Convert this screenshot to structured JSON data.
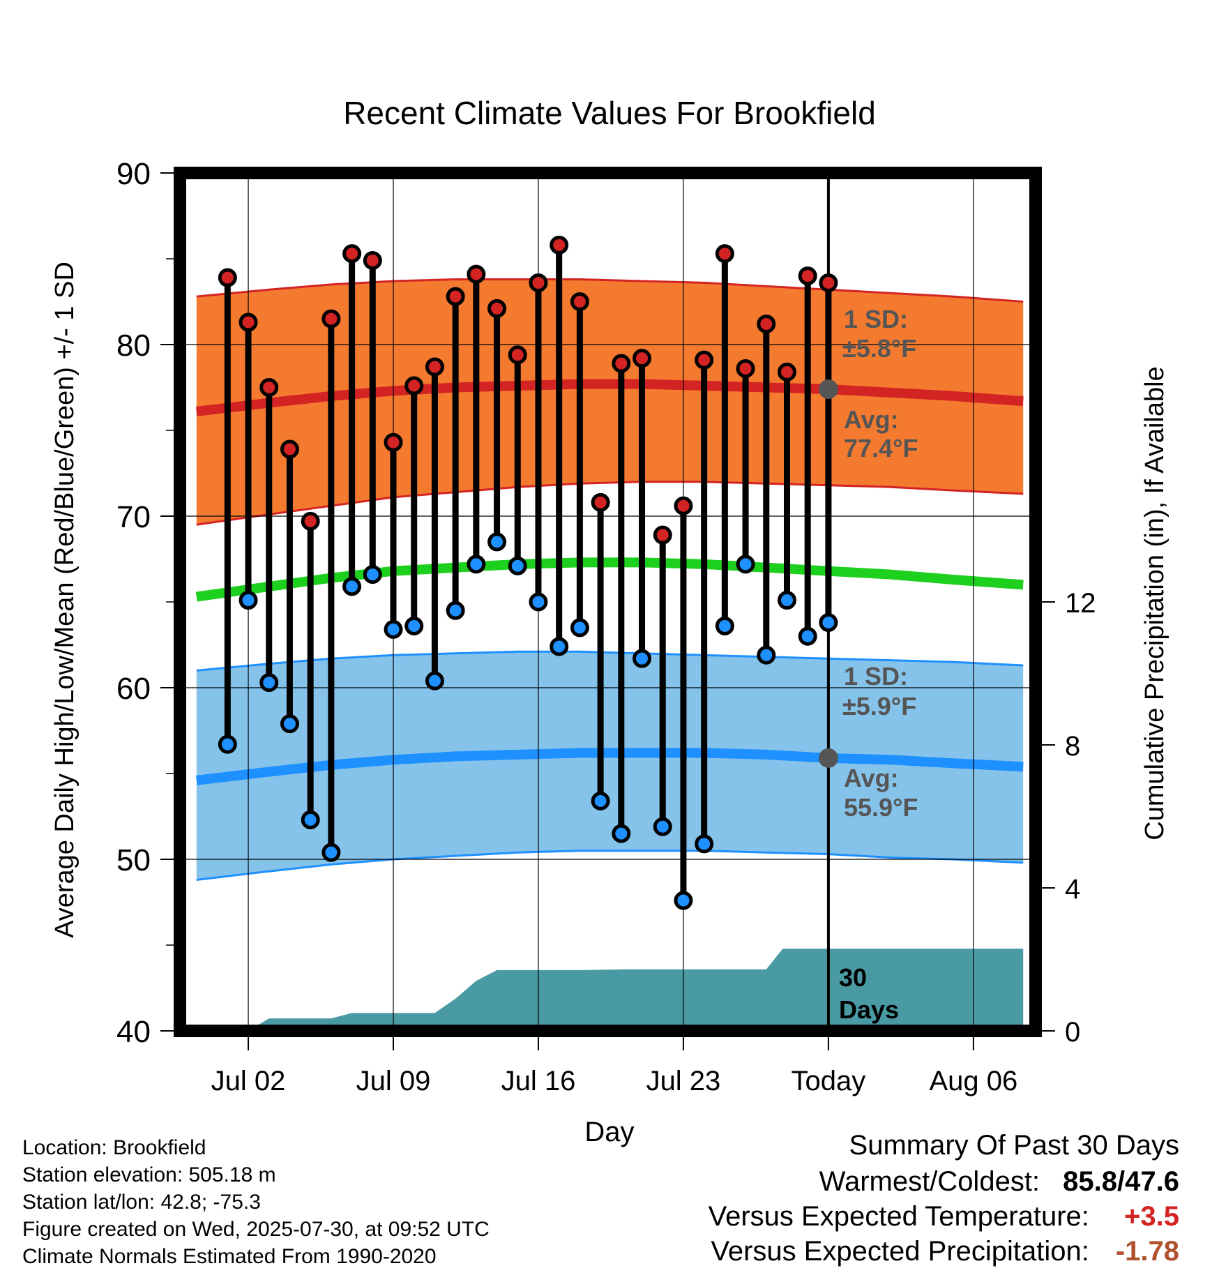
{
  "chart_data": {
    "type": "line",
    "title": "Recent Climate Values For Brookfield",
    "xlabel": "Day",
    "ylabel": "Average Daily High/Low/Mean (Red/Blue/Green) +/- 1 SD",
    "y2label": "Cumulative Precipitation (in), If Available",
    "ylim": [
      40,
      90
    ],
    "y2lim": [
      0,
      24
    ],
    "y_ticks": [
      "90",
      "80",
      "70",
      "60",
      "50",
      "40"
    ],
    "y2_ticks": [
      "12",
      "8",
      "4",
      "0"
    ],
    "x_tick_labels": [
      "Jul 02",
      "Jul 09",
      "Jul 16",
      "Jul 23",
      "Today",
      "Aug 06"
    ],
    "x_range_days": [
      -1.3,
      40.0
    ],
    "x_tick_days": [
      2,
      9,
      16,
      23,
      30,
      37
    ],
    "today_day": 30,
    "grid": true,
    "daily_obs": {
      "days": [
        1,
        2,
        3,
        4,
        5,
        6,
        7,
        8,
        9,
        10,
        11,
        12,
        13,
        14,
        15,
        16,
        17,
        18,
        19,
        20,
        21,
        22,
        23,
        24,
        25,
        26,
        27,
        28,
        29,
        30
      ],
      "high": [
        83.9,
        81.3,
        77.5,
        73.9,
        69.7,
        81.5,
        85.3,
        84.9,
        74.3,
        77.6,
        78.7,
        82.8,
        84.1,
        82.1,
        79.4,
        83.6,
        85.8,
        82.5,
        70.8,
        78.9,
        79.2,
        68.9,
        70.6,
        79.1,
        85.3,
        78.6,
        81.2,
        78.4,
        84.0,
        83.6
      ],
      "low": [
        56.7,
        65.1,
        60.3,
        57.9,
        52.3,
        50.4,
        65.9,
        66.6,
        63.4,
        63.6,
        60.4,
        64.5,
        67.2,
        68.5,
        67.1,
        65.0,
        62.4,
        63.5,
        53.4,
        51.5,
        61.7,
        51.9,
        47.6,
        50.9,
        63.6,
        67.2,
        61.9,
        65.1,
        63.0,
        63.8
      ]
    },
    "normals": {
      "days": [
        -0.5,
        3,
        6,
        9,
        12,
        15,
        18,
        21,
        24,
        27,
        30,
        33,
        36,
        39.4
      ],
      "high_mean": [
        76.1,
        76.6,
        77.0,
        77.3,
        77.5,
        77.6,
        77.7,
        77.7,
        77.6,
        77.5,
        77.4,
        77.2,
        77.0,
        76.7
      ],
      "high_upper": [
        82.8,
        83.2,
        83.5,
        83.7,
        83.8,
        83.8,
        83.8,
        83.7,
        83.6,
        83.4,
        83.2,
        83.0,
        82.8,
        82.5
      ],
      "high_lower": [
        69.5,
        70.1,
        70.6,
        71.1,
        71.4,
        71.7,
        71.9,
        72.0,
        72.0,
        71.9,
        71.8,
        71.7,
        71.5,
        71.3
      ],
      "low_mean": [
        54.6,
        55.1,
        55.5,
        55.8,
        56.0,
        56.1,
        56.2,
        56.2,
        56.2,
        56.1,
        55.9,
        55.8,
        55.6,
        55.4
      ],
      "low_upper": [
        61.0,
        61.4,
        61.7,
        61.9,
        62.0,
        62.1,
        62.1,
        62.0,
        61.9,
        61.8,
        61.7,
        61.6,
        61.5,
        61.3
      ],
      "low_lower": [
        48.8,
        49.3,
        49.7,
        50.0,
        50.2,
        50.4,
        50.5,
        50.5,
        50.5,
        50.4,
        50.3,
        50.1,
        50.0,
        49.8
      ],
      "mean": [
        65.3,
        65.9,
        66.4,
        66.8,
        67.0,
        67.2,
        67.3,
        67.3,
        67.2,
        67.0,
        66.8,
        66.6,
        66.3,
        66.0
      ]
    },
    "precip_cumulative": {
      "days": [
        -0.5,
        0.2,
        2,
        3,
        6,
        7,
        11,
        12,
        13,
        14,
        16,
        18,
        20,
        22,
        24,
        27,
        27.8,
        29,
        30,
        33,
        36,
        39.4
      ],
      "values": [
        0.0,
        0.0,
        0.0,
        0.35,
        0.35,
        0.5,
        0.5,
        0.9,
        1.4,
        1.7,
        1.7,
        1.7,
        1.72,
        1.72,
        1.72,
        1.72,
        2.3,
        2.3,
        2.3,
        2.3,
        2.3,
        2.3
      ]
    },
    "annotations": {
      "high_sd_label": "1 SD:",
      "high_sd_value": "±5.8°F",
      "high_avg_label": "Avg:",
      "high_avg_value": "77.4°F",
      "high_avg_marker": 77.4,
      "low_sd_label": "1 SD:",
      "low_sd_value": "±5.9°F",
      "low_avg_label": "Avg:",
      "low_avg_value": "55.9°F",
      "low_avg_marker": 55.9,
      "precip_days_label_1": "30",
      "precip_days_label_2": "Days"
    },
    "colors": {
      "high_band": "#f47a30",
      "high_line": "#d42323",
      "low_band": "#86c3ea",
      "low_line": "#1e90ff",
      "mean_line": "#1ed01e",
      "precip_fill": "#4a9aa4",
      "high_dot": "#d42323",
      "low_dot": "#1e90ff",
      "annotation_text": "#555555",
      "warm_value": "#d42323",
      "dry_value": "#b0522d"
    }
  },
  "footer": {
    "location": "Location: Brookfield",
    "elevation": "Station elevation: 505.18 m",
    "latlon": "Station lat/lon: 42.8; -75.3",
    "created": "Figure created on Wed, 2025-07-30, at 09:52 UTC",
    "normals": "Climate Normals Estimated From 1990-2020"
  },
  "summary": {
    "heading": "Summary Of Past 30 Days",
    "warm_cold_label": "Warmest/Coldest:",
    "warm_cold_value": "85.8/47.6",
    "temp_label": "Versus Expected Temperature:",
    "temp_value": "+3.5",
    "precip_label": "Versus Expected Precipitation:",
    "precip_value": "-1.78"
  }
}
